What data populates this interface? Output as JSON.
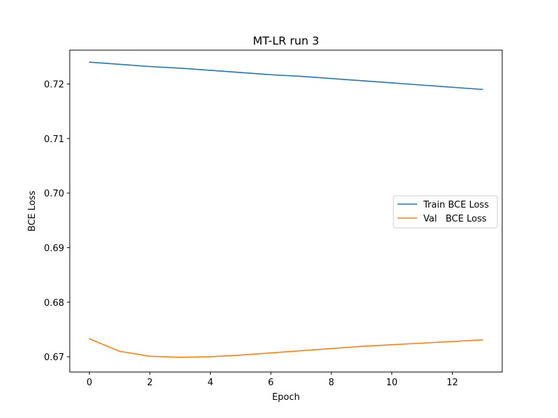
{
  "chart_data": {
    "type": "line",
    "title": "MT-LR run 3",
    "xlabel": "Epoch",
    "ylabel": "BCE Loss",
    "xlim": [
      -0.65,
      13.65
    ],
    "ylim": [
      0.6672,
      0.7262
    ],
    "xticks": [
      0,
      2,
      4,
      6,
      8,
      10,
      12
    ],
    "yticks": [
      0.67,
      0.68,
      0.69,
      0.7,
      0.71,
      0.72
    ],
    "ytick_labels": [
      "0.67",
      "0.68",
      "0.69",
      "0.70",
      "0.71",
      "0.72"
    ],
    "xtick_labels": [
      "0",
      "2",
      "4",
      "6",
      "8",
      "10",
      "12"
    ],
    "x": [
      0,
      1,
      2,
      3,
      4,
      5,
      6,
      7,
      8,
      9,
      10,
      11,
      12,
      13
    ],
    "grid": false,
    "legend_position": "center-right",
    "series": [
      {
        "name": "Train BCE Loss",
        "color": "#1f77b4",
        "values": [
          0.724,
          0.7236,
          0.7232,
          0.7229,
          0.7225,
          0.7221,
          0.7217,
          0.7214,
          0.721,
          0.7206,
          0.7202,
          0.7198,
          0.7194,
          0.719
        ]
      },
      {
        "name": "Val   BCE Loss",
        "color": "#ff7f0e",
        "values": [
          0.6733,
          0.671,
          0.6701,
          0.6699,
          0.67,
          0.6703,
          0.6707,
          0.6711,
          0.6715,
          0.6719,
          0.6722,
          0.6725,
          0.6728,
          0.6731
        ]
      }
    ]
  }
}
